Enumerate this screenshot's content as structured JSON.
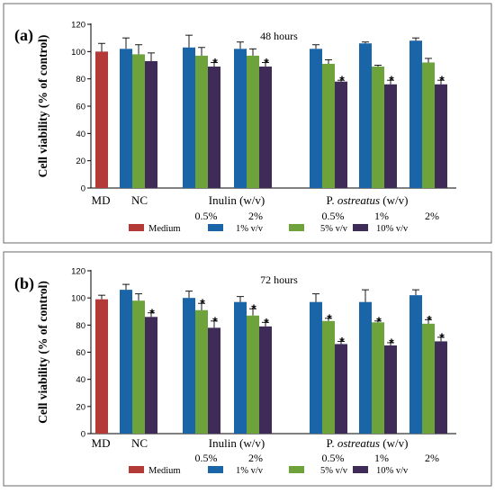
{
  "colors": {
    "Medium": "#b33a36",
    "1% v/v": "#1a64a8",
    "5% v/v": "#6ea33c",
    "10% v/v": "#3f2b58"
  },
  "chart_data": [
    {
      "type": "bar",
      "panel": "(a)",
      "title": "48 hours",
      "ylabel": "Cell viability (% of control)",
      "ylim": [
        0,
        120
      ],
      "yticks": [
        0,
        20,
        40,
        60,
        80,
        100,
        120
      ],
      "legend": [
        "Medium",
        "1% v/v",
        "5% v/v",
        "10% v/v"
      ],
      "group_labels": [
        {
          "text": "MD",
          "row": 1
        },
        {
          "text": "NC",
          "row": 1
        },
        {
          "text": "Inulin (w/v)",
          "row": 1
        },
        {
          "text": "0.5%",
          "row": 2
        },
        {
          "text": "2%",
          "row": 2
        },
        {
          "text": "P. ostreatus (w/v)",
          "row": 1
        },
        {
          "text": "0.5%",
          "row": 2
        },
        {
          "text": "1%",
          "row": 2
        },
        {
          "text": "2%",
          "row": 2
        }
      ],
      "groups": [
        {
          "bars": [
            {
              "series": "Medium",
              "value": 100,
              "error": 6,
              "star": false
            }
          ]
        },
        {
          "bars": [
            {
              "series": "1% v/v",
              "value": 102,
              "error": 8,
              "star": false
            },
            {
              "series": "5% v/v",
              "value": 98,
              "error": 7,
              "star": false
            },
            {
              "series": "10% v/v",
              "value": 93,
              "error": 6,
              "star": false
            }
          ]
        },
        {
          "bars": [
            {
              "series": "1% v/v",
              "value": 103,
              "error": 9,
              "star": false
            },
            {
              "series": "5% v/v",
              "value": 97,
              "error": 6,
              "star": false
            },
            {
              "series": "10% v/v",
              "value": 89,
              "error": 3,
              "star": true
            }
          ]
        },
        {
          "bars": [
            {
              "series": "1% v/v",
              "value": 102,
              "error": 5,
              "star": false
            },
            {
              "series": "5% v/v",
              "value": 97,
              "error": 5,
              "star": false
            },
            {
              "series": "10% v/v",
              "value": 89,
              "error": 3,
              "star": true
            }
          ]
        },
        {
          "bars": [
            {
              "series": "1% v/v",
              "value": 102,
              "error": 3,
              "star": false
            },
            {
              "series": "5% v/v",
              "value": 91,
              "error": 3,
              "star": false
            },
            {
              "series": "10% v/v",
              "value": 78,
              "error": 1,
              "star": true
            }
          ]
        },
        {
          "bars": [
            {
              "series": "1% v/v",
              "value": 106,
              "error": 1,
              "star": false
            },
            {
              "series": "5% v/v",
              "value": 89,
              "error": 1,
              "star": false
            },
            {
              "series": "10% v/v",
              "value": 76,
              "error": 3,
              "star": true
            }
          ]
        },
        {
          "bars": [
            {
              "series": "1% v/v",
              "value": 108,
              "error": 2,
              "star": false
            },
            {
              "series": "5% v/v",
              "value": 92,
              "error": 3,
              "star": false
            },
            {
              "series": "10% v/v",
              "value": 76,
              "error": 3,
              "star": true
            }
          ]
        }
      ]
    },
    {
      "type": "bar",
      "panel": "(b)",
      "title": "72 hours",
      "ylabel": "Cell viability  (% of control)",
      "ylim": [
        0,
        120
      ],
      "yticks": [
        0,
        20,
        40,
        60,
        80,
        100,
        120
      ],
      "legend": [
        "Medium",
        "1% v/v",
        "5% v/v",
        "10% v/v"
      ],
      "group_labels": [
        {
          "text": "MD",
          "row": 1
        },
        {
          "text": "NC",
          "row": 1
        },
        {
          "text": "Inulin (w/v)",
          "row": 1
        },
        {
          "text": "0.5%",
          "row": 2
        },
        {
          "text": "2%",
          "row": 2
        },
        {
          "text": "P. ostreatus (w/v)",
          "row": 1
        },
        {
          "text": "0.5%",
          "row": 2
        },
        {
          "text": "1%",
          "row": 2
        },
        {
          "text": "2%",
          "row": 2
        }
      ],
      "groups": [
        {
          "bars": [
            {
              "series": "Medium",
              "value": 99,
              "error": 3,
              "star": false
            }
          ]
        },
        {
          "bars": [
            {
              "series": "1% v/v",
              "value": 106,
              "error": 4,
              "star": false
            },
            {
              "series": "5% v/v",
              "value": 98,
              "error": 5,
              "star": false
            },
            {
              "series": "10% v/v",
              "value": 86,
              "error": 3,
              "star": true
            }
          ]
        },
        {
          "bars": [
            {
              "series": "1% v/v",
              "value": 100,
              "error": 5,
              "star": false
            },
            {
              "series": "5% v/v",
              "value": 91,
              "error": 5,
              "star": true
            },
            {
              "series": "10% v/v",
              "value": 78,
              "error": 5,
              "star": true
            }
          ]
        },
        {
          "bars": [
            {
              "series": "1% v/v",
              "value": 97,
              "error": 4,
              "star": false
            },
            {
              "series": "5% v/v",
              "value": 87,
              "error": 5,
              "star": true
            },
            {
              "series": "10% v/v",
              "value": 79,
              "error": 3,
              "star": true
            }
          ]
        },
        {
          "bars": [
            {
              "series": "1% v/v",
              "value": 97,
              "error": 6,
              "star": false
            },
            {
              "series": "5% v/v",
              "value": 83,
              "error": 2,
              "star": true
            },
            {
              "series": "10% v/v",
              "value": 66,
              "error": 2,
              "star": true
            }
          ]
        },
        {
          "bars": [
            {
              "series": "1% v/v",
              "value": 97,
              "error": 9,
              "star": false
            },
            {
              "series": "5% v/v",
              "value": 82,
              "error": 1,
              "star": true
            },
            {
              "series": "10% v/v",
              "value": 65,
              "error": 2,
              "star": true
            }
          ]
        },
        {
          "bars": [
            {
              "series": "1% v/v",
              "value": 102,
              "error": 4,
              "star": false
            },
            {
              "series": "5% v/v",
              "value": 81,
              "error": 3,
              "star": true
            },
            {
              "series": "10% v/v",
              "value": 68,
              "error": 3,
              "star": true
            }
          ]
        }
      ]
    }
  ]
}
